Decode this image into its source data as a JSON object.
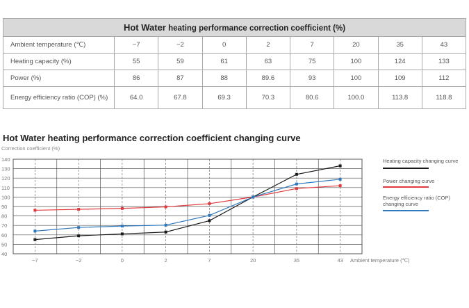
{
  "table": {
    "title_bold": "Hot Water",
    "title_rest": "heating performance correction coefficient (%)",
    "rows": [
      {
        "label": "Ambient temperature (℃)",
        "values": [
          "−7",
          "−2",
          "0",
          "2",
          "7",
          "20",
          "35",
          "43"
        ]
      },
      {
        "label": "Heating capacity (%)",
        "values": [
          "55",
          "59",
          "61",
          "63",
          "75",
          "100",
          "124",
          "133"
        ]
      },
      {
        "label": "Power (%)",
        "values": [
          "86",
          "87",
          "88",
          "89.6",
          "93",
          "100",
          "109",
          "112"
        ]
      },
      {
        "label": "Energy efficiency ratio (COP) (%)",
        "values": [
          "64.0",
          "67.8",
          "69.3",
          "70.3",
          "80.6",
          "100.0",
          "113.8",
          "118.8"
        ]
      }
    ]
  },
  "chart_data": {
    "type": "line",
    "title": "Hot Water heating performance correction coefficient changing curve",
    "ylabel": "Correction coefficient (%)",
    "xlabel": "Ambient temperature (℃)",
    "categories": [
      "−7",
      "−2",
      "0",
      "2",
      "7",
      "20",
      "35",
      "43"
    ],
    "ylim": [
      40,
      140
    ],
    "yticks": [
      40,
      50,
      60,
      70,
      80,
      90,
      100,
      110,
      120,
      130,
      140
    ],
    "grid": true,
    "legend_position": "right",
    "series": [
      {
        "name": "Heating capacity changing curve",
        "color": "#1a1a1a",
        "values": [
          55,
          59,
          61,
          63,
          75,
          100,
          124,
          133
        ]
      },
      {
        "name": "Power changing curve",
        "color": "#e03a3e",
        "values": [
          86,
          87,
          88,
          89.6,
          93,
          100,
          109,
          112
        ]
      },
      {
        "name": "Energy efficiency ratio (COP) changing curve",
        "color": "#2f78bd",
        "values": [
          64.0,
          67.8,
          69.3,
          70.3,
          80.6,
          100.0,
          113.8,
          118.8
        ]
      }
    ]
  }
}
